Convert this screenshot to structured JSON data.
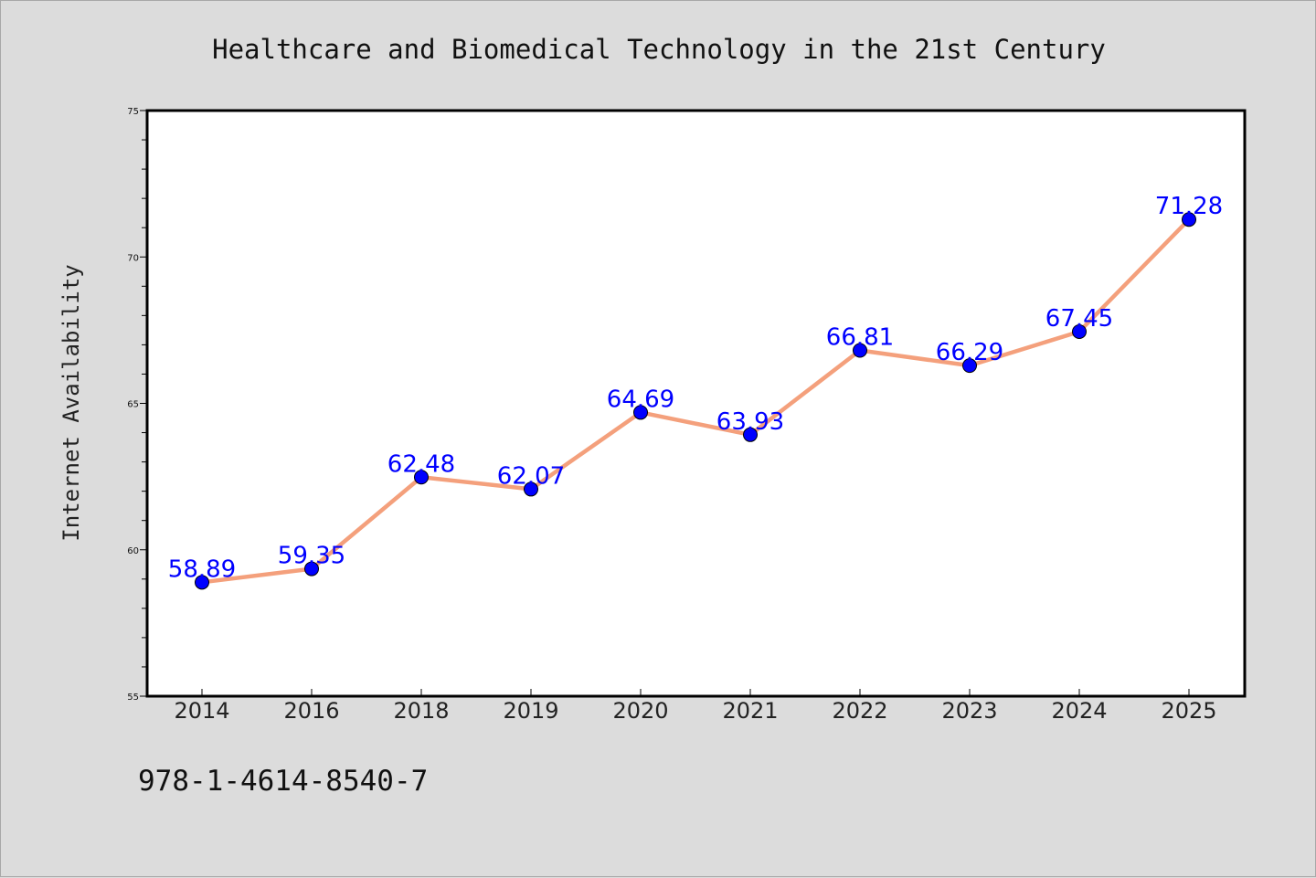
{
  "chart_data": {
    "type": "line",
    "title": "Healthcare and Biomedical Technology in the 21st Century",
    "xlabel": "",
    "ylabel": "Internet Availability",
    "categories": [
      "2014",
      "2016",
      "2018",
      "2019",
      "2020",
      "2021",
      "2022",
      "2023",
      "2024",
      "2025"
    ],
    "series": [
      {
        "values": [
          58.89,
          59.35,
          62.48,
          62.07,
          64.69,
          63.93,
          66.81,
          66.29,
          67.45,
          71.28
        ],
        "data_labels": [
          "58.89",
          "59.35",
          "62.48",
          "62.07",
          "64.69",
          "63.93",
          "66.81",
          "66.29",
          "67.45",
          "71.28"
        ],
        "line_color": "#f4a07c",
        "marker_color": "#0000ff"
      }
    ],
    "ylim": [
      55,
      75
    ],
    "yticks": [
      "55",
      "60",
      "65",
      "70",
      "75"
    ],
    "grid": false,
    "legend": "none"
  },
  "footer": {
    "code": "978-1-4614-8540-7"
  },
  "colors": {
    "background": "#dcdcdc",
    "plot_background": "#ffffff",
    "line": "#f4a07c",
    "marker": "#0000ff",
    "data_label": "#0000ff"
  }
}
